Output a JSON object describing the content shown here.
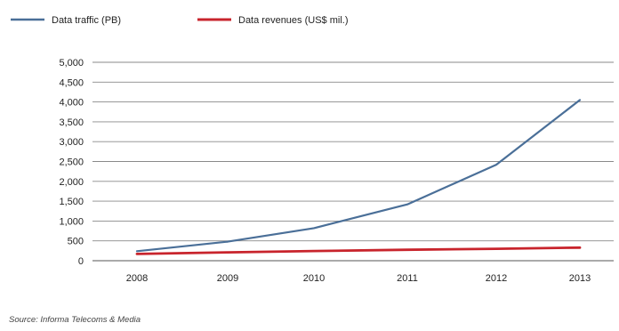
{
  "chart_data": {
    "type": "line",
    "title": "",
    "xlabel": "",
    "ylabel": "",
    "categories": [
      "2008",
      "2009",
      "2010",
      "2011",
      "2012",
      "2013"
    ],
    "ylim": [
      0,
      5000
    ],
    "yticks": [
      0,
      500,
      1000,
      1500,
      2000,
      2500,
      3000,
      3500,
      4000,
      4500,
      5000
    ],
    "ytick_labels": [
      "0",
      "500",
      "1,000",
      "1,500",
      "2,000",
      "2,500",
      "3,000",
      "3,500",
      "4,000",
      "4,500",
      "5,000"
    ],
    "grid": "horizontal",
    "legend_position": "top-left",
    "series": [
      {
        "name": "Data traffic (PB)",
        "color": "#4a6f98",
        "values": [
          240,
          480,
          820,
          1420,
          2420,
          4050
        ]
      },
      {
        "name": "Data revenues (US$ mil.)",
        "color": "#c8242c",
        "values": [
          170,
          210,
          245,
          275,
          300,
          330
        ]
      }
    ],
    "source": "Source: Informa Telecoms & Media"
  }
}
